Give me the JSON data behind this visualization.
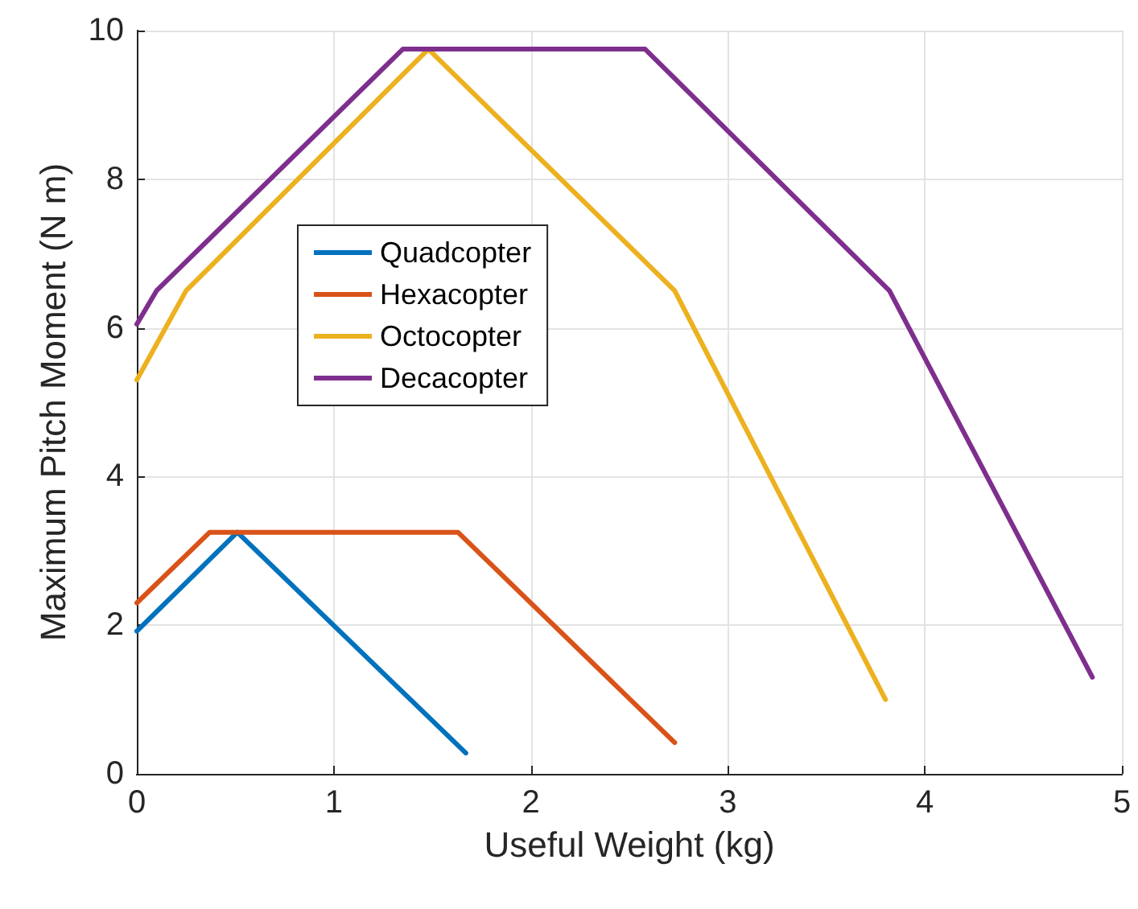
{
  "chart_data": {
    "type": "line",
    "xlabel": "Useful Weight (kg)",
    "ylabel": "Maximum Pitch Moment (N m)",
    "xlim": [
      0,
      5
    ],
    "xticks": [
      0,
      1,
      2,
      3,
      4,
      5
    ],
    "ylim": [
      0,
      10
    ],
    "yticks": [
      0,
      2,
      4,
      6,
      8,
      10
    ],
    "grid": true,
    "legend": "left",
    "marker": "none",
    "line_style": "solid",
    "series": [
      {
        "name": "Quadcopter",
        "color": "#0072bd",
        "x": [
          0,
          0.51,
          1.67
        ],
        "values": [
          1.92,
          3.25,
          0.28
        ]
      },
      {
        "name": "Hexacopter",
        "color": "#d95319",
        "x": [
          0,
          0.37,
          1.63,
          2.73
        ],
        "values": [
          2.3,
          3.25,
          3.25,
          0.42
        ]
      },
      {
        "name": "Octocopter",
        "color": "#edb120",
        "x": [
          0,
          0.25,
          1.48,
          2.73,
          3.8
        ],
        "values": [
          5.3,
          6.5,
          9.75,
          6.5,
          1.0
        ]
      },
      {
        "name": "Decacopter",
        "color": "#7e2f8e",
        "x": [
          0,
          0.1,
          1.35,
          2.58,
          3.82,
          4.85
        ],
        "values": [
          6.05,
          6.5,
          9.75,
          9.75,
          6.5,
          1.3
        ]
      }
    ]
  }
}
